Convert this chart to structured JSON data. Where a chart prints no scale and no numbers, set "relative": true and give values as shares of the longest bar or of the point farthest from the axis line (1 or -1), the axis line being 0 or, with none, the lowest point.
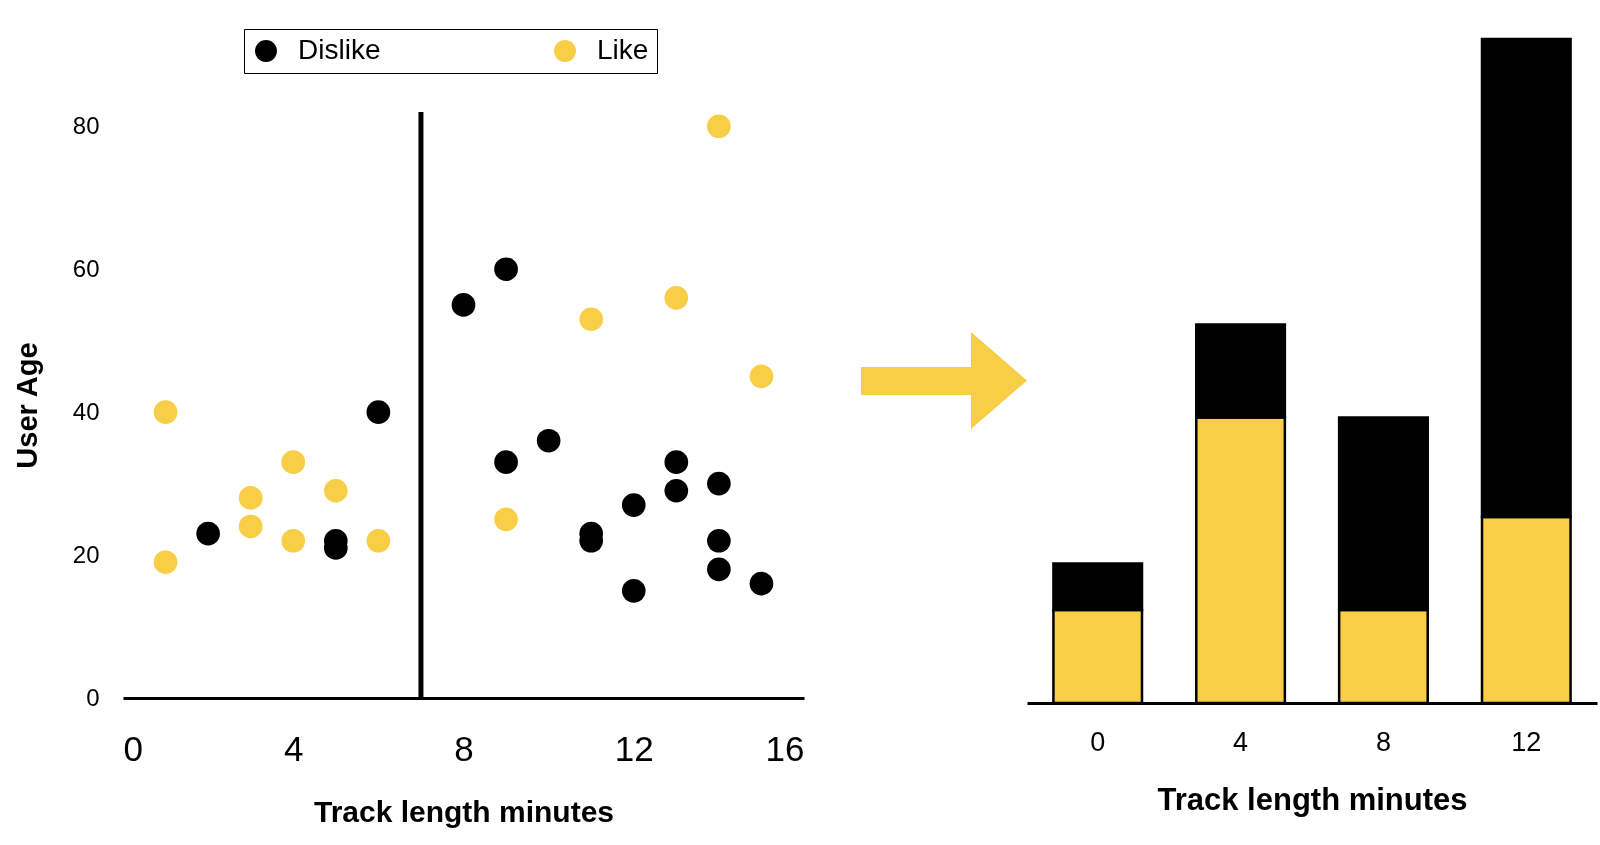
{
  "chart_data": [
    {
      "type": "scatter",
      "xlabel": "Track length minutes",
      "ylabel": "User Age",
      "xlim": [
        0,
        16
      ],
      "xticks": [
        0,
        4,
        8,
        12,
        16
      ],
      "ylim": [
        0,
        82
      ],
      "yticks": [
        0,
        20,
        40,
        60,
        80
      ],
      "legend": "top",
      "marker": "circle",
      "series": [
        {
          "name": "Dislike",
          "color": "#000000",
          "x": [
            2,
            5,
            5,
            6,
            8,
            9,
            9,
            10,
            11,
            11,
            12,
            12,
            13,
            13,
            14,
            14,
            14,
            15
          ],
          "values": [
            23,
            22,
            21,
            40,
            55,
            60,
            33,
            36,
            23,
            22,
            27,
            15,
            33,
            29,
            30,
            22,
            18,
            16
          ]
        },
        {
          "name": "Like",
          "color": "#f7ce46",
          "x": [
            1,
            1,
            3,
            3,
            4,
            4,
            5,
            6,
            9,
            11,
            13,
            14,
            15
          ],
          "values": [
            40,
            19,
            28,
            24,
            33,
            22,
            29,
            22,
            25,
            53,
            56,
            80,
            45
          ]
        }
      ],
      "ref_lines": [
        {
          "axis": "x",
          "value": 7,
          "color": "#000000"
        }
      ]
    },
    {
      "type": "bar",
      "stacked": true,
      "relative": true,
      "xlabel": "Track length minutes",
      "categories": [
        "0",
        "4",
        "8",
        "12"
      ],
      "series": [
        {
          "color": "#f7ce46",
          "values": [
            0.14,
            0.43,
            0.14,
            0.28
          ]
        },
        {
          "color": "#000000",
          "values": [
            0.07,
            0.14,
            0.29,
            0.72
          ]
        }
      ]
    }
  ]
}
